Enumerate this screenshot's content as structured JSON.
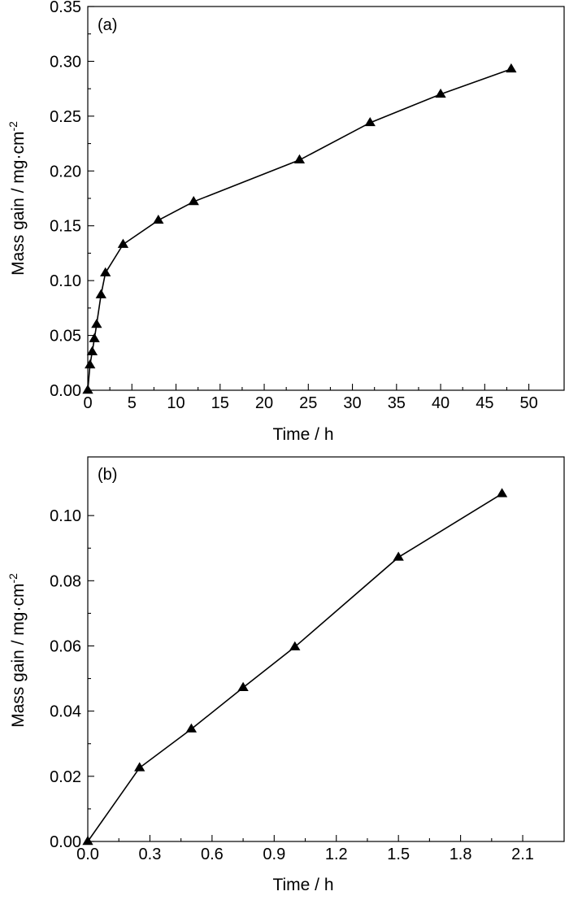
{
  "chart_data": [
    {
      "type": "line",
      "panel_label": "(a)",
      "xlabel": "Time / h",
      "ylabel": "Mass gain  / mg·cm",
      "ylabel_sup": "-2",
      "xlim": [
        0,
        54
      ],
      "ylim": [
        0,
        0.35
      ],
      "x_ticks": [
        0,
        5,
        10,
        15,
        20,
        25,
        30,
        35,
        40,
        45,
        50
      ],
      "x_tick_labels": [
        "0",
        "5",
        "10",
        "15",
        "20",
        "25",
        "30",
        "35",
        "40",
        "45",
        "50"
      ],
      "y_ticks": [
        0,
        0.05,
        0.1,
        0.15,
        0.2,
        0.25,
        0.3,
        0.35
      ],
      "y_tick_labels": [
        "0.00",
        "0.05",
        "0.10",
        "0.15",
        "0.20",
        "0.25",
        "0.30",
        "0.35"
      ],
      "grid": false,
      "series": [
        {
          "marker": "triangle",
          "color": "#000000",
          "x": [
            0,
            0.25,
            0.5,
            0.75,
            1.0,
            1.5,
            2.0,
            4,
            8,
            12,
            24,
            32,
            40,
            48
          ],
          "y": [
            0,
            0.023,
            0.035,
            0.047,
            0.06,
            0.087,
            0.107,
            0.133,
            0.155,
            0.172,
            0.21,
            0.244,
            0.27,
            0.293
          ]
        }
      ]
    },
    {
      "type": "line",
      "panel_label": "(b)",
      "xlabel": "Time / h",
      "ylabel": "Mass gain / mg·cm",
      "ylabel_sup": "-2",
      "xlim": [
        0,
        2.3
      ],
      "ylim": [
        0,
        0.118
      ],
      "x_ticks": [
        0,
        0.3,
        0.6,
        0.9,
        1.2,
        1.5,
        1.8,
        2.1
      ],
      "x_tick_labels": [
        "0.0",
        "0.3",
        "0.6",
        "0.9",
        "1.2",
        "1.5",
        "1.8",
        "2.1"
      ],
      "y_ticks": [
        0,
        0.02,
        0.04,
        0.06,
        0.08,
        0.1
      ],
      "y_tick_labels": [
        "0.00",
        "0.02",
        "0.04",
        "0.06",
        "0.08",
        "0.10"
      ],
      "grid": false,
      "series": [
        {
          "marker": "triangle",
          "color": "#000000",
          "x": [
            0,
            0.25,
            0.5,
            0.75,
            1.0,
            1.5,
            2.0
          ],
          "y": [
            0,
            0.0226,
            0.0345,
            0.0472,
            0.0597,
            0.0872,
            0.1067
          ]
        }
      ]
    }
  ]
}
